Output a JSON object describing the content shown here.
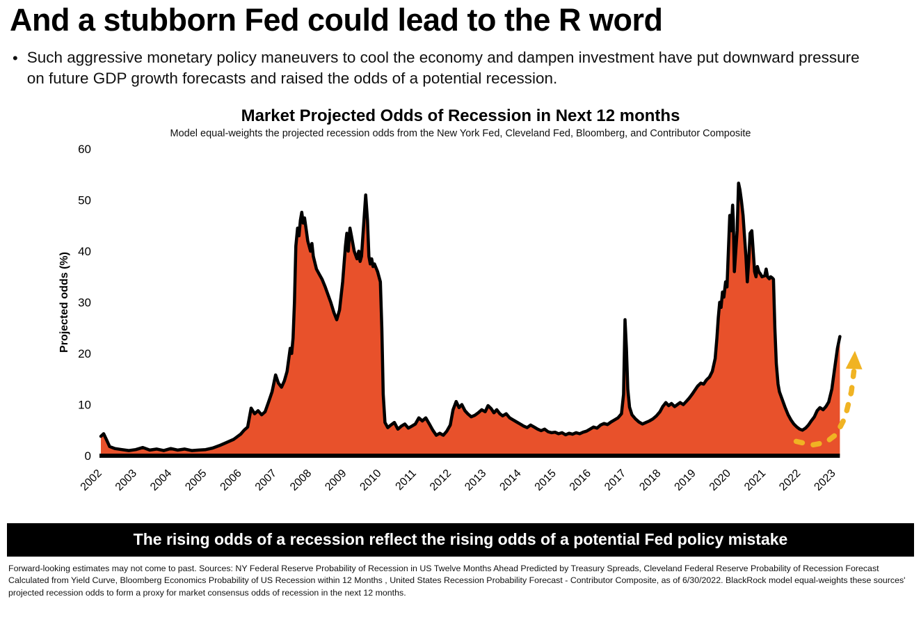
{
  "page": {
    "headline": "And a stubborn Fed could lead to the R word",
    "bullet_glyph": "•",
    "bullet": "Such aggressive monetary policy maneuvers to cool the economy and dampen investment have put downward pressure on future GDP growth forecasts and raised the odds of a potential recession.",
    "banner": "The rising odds of a recession reflect the rising odds of a potential Fed policy mistake",
    "footnote": "Forward-looking estimates may not come to past. Sources: NY Federal Reserve Probability of Recession in US Twelve Months Ahead Predicted by Treasury Spreads, Cleveland Federal Reserve Probability of Recession Forecast Calculated from Yield Curve, Bloomberg Economics Probability of US Recession within 12 Months , United States Recession Probability Forecast - Contributor Composite, as of 6/30/2022. BlackRock model equal-weights these sources' projected recession odds to form a proxy for market consensus odds of recession in the next 12 months."
  },
  "chart_data": {
    "type": "area",
    "title": "Market Projected Odds of Recession in Next 12 months",
    "subtitle": "Model equal-weights the projected recession odds from the New York Fed, Cleveland Fed, Bloomberg, and Contributor Composite",
    "ylabel": "Projected odds (%)",
    "ylim": [
      0,
      60
    ],
    "yticks": [
      0,
      10,
      20,
      30,
      40,
      50,
      60
    ],
    "xlim": [
      2002,
      2023.7
    ],
    "xticks": [
      2002,
      2003,
      2004,
      2005,
      2006,
      2007,
      2008,
      2009,
      2010,
      2011,
      2012,
      2013,
      2014,
      2015,
      2016,
      2017,
      2018,
      2019,
      2020,
      2021,
      2022,
      2023
    ],
    "grid": false,
    "legend": null,
    "fill_color": "#E8512B",
    "line_color": "#000000",
    "points": [
      [
        2002.0,
        3.8
      ],
      [
        2002.08,
        4.3
      ],
      [
        2002.17,
        3.0
      ],
      [
        2002.25,
        1.8
      ],
      [
        2002.4,
        1.4
      ],
      [
        2002.6,
        1.2
      ],
      [
        2002.8,
        1.0
      ],
      [
        2003.0,
        1.2
      ],
      [
        2003.2,
        1.6
      ],
      [
        2003.4,
        1.1
      ],
      [
        2003.6,
        1.3
      ],
      [
        2003.8,
        1.0
      ],
      [
        2004.0,
        1.4
      ],
      [
        2004.2,
        1.1
      ],
      [
        2004.4,
        1.3
      ],
      [
        2004.6,
        1.0
      ],
      [
        2004.8,
        1.1
      ],
      [
        2005.0,
        1.2
      ],
      [
        2005.2,
        1.5
      ],
      [
        2005.4,
        2.0
      ],
      [
        2005.6,
        2.6
      ],
      [
        2005.8,
        3.2
      ],
      [
        2006.0,
        4.2
      ],
      [
        2006.1,
        5.0
      ],
      [
        2006.2,
        5.6
      ],
      [
        2006.3,
        9.3
      ],
      [
        2006.4,
        8.2
      ],
      [
        2006.5,
        8.8
      ],
      [
        2006.6,
        8.0
      ],
      [
        2006.7,
        8.6
      ],
      [
        2006.8,
        10.5
      ],
      [
        2006.9,
        12.5
      ],
      [
        2007.0,
        15.8
      ],
      [
        2007.08,
        14.2
      ],
      [
        2007.17,
        13.4
      ],
      [
        2007.25,
        14.6
      ],
      [
        2007.33,
        16.5
      ],
      [
        2007.42,
        21.0
      ],
      [
        2007.46,
        20.0
      ],
      [
        2007.5,
        23.0
      ],
      [
        2007.54,
        30.0
      ],
      [
        2007.58,
        41.0
      ],
      [
        2007.63,
        44.5
      ],
      [
        2007.67,
        43.0
      ],
      [
        2007.71,
        46.0
      ],
      [
        2007.75,
        47.6
      ],
      [
        2007.79,
        45.5
      ],
      [
        2007.83,
        46.5
      ],
      [
        2007.88,
        44.0
      ],
      [
        2007.92,
        42.0
      ],
      [
        2008.0,
        40.0
      ],
      [
        2008.04,
        41.5
      ],
      [
        2008.08,
        39.0
      ],
      [
        2008.17,
        36.5
      ],
      [
        2008.25,
        35.5
      ],
      [
        2008.33,
        34.5
      ],
      [
        2008.42,
        33.0
      ],
      [
        2008.5,
        31.5
      ],
      [
        2008.58,
        30.0
      ],
      [
        2008.67,
        28.0
      ],
      [
        2008.75,
        26.6
      ],
      [
        2008.83,
        28.5
      ],
      [
        2008.92,
        34.0
      ],
      [
        2009.0,
        41.0
      ],
      [
        2009.04,
        43.5
      ],
      [
        2009.08,
        40.0
      ],
      [
        2009.13,
        44.5
      ],
      [
        2009.17,
        43.0
      ],
      [
        2009.25,
        40.0
      ],
      [
        2009.33,
        38.5
      ],
      [
        2009.38,
        40.0
      ],
      [
        2009.42,
        38.0
      ],
      [
        2009.46,
        39.0
      ],
      [
        2009.5,
        43.0
      ],
      [
        2009.54,
        47.0
      ],
      [
        2009.58,
        51.0
      ],
      [
        2009.63,
        46.0
      ],
      [
        2009.67,
        39.0
      ],
      [
        2009.71,
        37.5
      ],
      [
        2009.75,
        38.5
      ],
      [
        2009.79,
        37.0
      ],
      [
        2009.83,
        37.5
      ],
      [
        2009.92,
        36.0
      ],
      [
        2010.0,
        34.0
      ],
      [
        2010.04,
        25.0
      ],
      [
        2010.08,
        12.0
      ],
      [
        2010.13,
        6.5
      ],
      [
        2010.21,
        5.5
      ],
      [
        2010.3,
        6.0
      ],
      [
        2010.4,
        6.5
      ],
      [
        2010.5,
        5.2
      ],
      [
        2010.6,
        5.8
      ],
      [
        2010.7,
        6.2
      ],
      [
        2010.8,
        5.4
      ],
      [
        2010.9,
        5.8
      ],
      [
        2011.0,
        6.2
      ],
      [
        2011.1,
        7.4
      ],
      [
        2011.2,
        6.8
      ],
      [
        2011.3,
        7.4
      ],
      [
        2011.4,
        6.2
      ],
      [
        2011.5,
        5.0
      ],
      [
        2011.6,
        4.0
      ],
      [
        2011.7,
        4.4
      ],
      [
        2011.8,
        4.0
      ],
      [
        2011.9,
        4.8
      ],
      [
        2012.0,
        6.0
      ],
      [
        2012.08,
        9.0
      ],
      [
        2012.17,
        10.6
      ],
      [
        2012.25,
        9.4
      ],
      [
        2012.33,
        10.0
      ],
      [
        2012.42,
        8.8
      ],
      [
        2012.5,
        8.2
      ],
      [
        2012.6,
        7.6
      ],
      [
        2012.7,
        7.9
      ],
      [
        2012.8,
        8.4
      ],
      [
        2012.9,
        9.0
      ],
      [
        2013.0,
        8.6
      ],
      [
        2013.08,
        9.8
      ],
      [
        2013.17,
        9.2
      ],
      [
        2013.25,
        8.4
      ],
      [
        2013.33,
        9.0
      ],
      [
        2013.42,
        8.2
      ],
      [
        2013.5,
        7.8
      ],
      [
        2013.6,
        8.2
      ],
      [
        2013.7,
        7.4
      ],
      [
        2013.8,
        7.0
      ],
      [
        2013.9,
        6.6
      ],
      [
        2014.0,
        6.2
      ],
      [
        2014.1,
        5.8
      ],
      [
        2014.2,
        5.5
      ],
      [
        2014.3,
        6.0
      ],
      [
        2014.4,
        5.6
      ],
      [
        2014.5,
        5.2
      ],
      [
        2014.6,
        4.9
      ],
      [
        2014.7,
        5.2
      ],
      [
        2014.8,
        4.7
      ],
      [
        2014.9,
        4.5
      ],
      [
        2015.0,
        4.6
      ],
      [
        2015.1,
        4.3
      ],
      [
        2015.2,
        4.5
      ],
      [
        2015.3,
        4.1
      ],
      [
        2015.4,
        4.4
      ],
      [
        2015.5,
        4.2
      ],
      [
        2015.6,
        4.5
      ],
      [
        2015.7,
        4.3
      ],
      [
        2015.8,
        4.6
      ],
      [
        2015.9,
        4.8
      ],
      [
        2016.0,
        5.2
      ],
      [
        2016.1,
        5.6
      ],
      [
        2016.2,
        5.4
      ],
      [
        2016.3,
        6.0
      ],
      [
        2016.4,
        6.3
      ],
      [
        2016.5,
        6.1
      ],
      [
        2016.6,
        6.6
      ],
      [
        2016.7,
        7.0
      ],
      [
        2016.8,
        7.4
      ],
      [
        2016.9,
        8.2
      ],
      [
        2016.96,
        12.0
      ],
      [
        2017.0,
        26.6
      ],
      [
        2017.04,
        21.0
      ],
      [
        2017.08,
        13.0
      ],
      [
        2017.13,
        9.5
      ],
      [
        2017.2,
        8.0
      ],
      [
        2017.3,
        7.2
      ],
      [
        2017.4,
        6.6
      ],
      [
        2017.5,
        6.2
      ],
      [
        2017.6,
        6.5
      ],
      [
        2017.7,
        6.8
      ],
      [
        2017.8,
        7.2
      ],
      [
        2017.9,
        7.8
      ],
      [
        2018.0,
        8.6
      ],
      [
        2018.08,
        9.6
      ],
      [
        2018.17,
        10.4
      ],
      [
        2018.25,
        9.8
      ],
      [
        2018.33,
        10.2
      ],
      [
        2018.42,
        9.6
      ],
      [
        2018.5,
        10.0
      ],
      [
        2018.58,
        10.4
      ],
      [
        2018.67,
        10.0
      ],
      [
        2018.75,
        10.6
      ],
      [
        2018.83,
        11.2
      ],
      [
        2018.92,
        12.0
      ],
      [
        2019.0,
        12.8
      ],
      [
        2019.08,
        13.6
      ],
      [
        2019.17,
        14.2
      ],
      [
        2019.25,
        14.0
      ],
      [
        2019.33,
        14.8
      ],
      [
        2019.42,
        15.4
      ],
      [
        2019.5,
        16.5
      ],
      [
        2019.58,
        19.0
      ],
      [
        2019.63,
        23.0
      ],
      [
        2019.67,
        27.0
      ],
      [
        2019.71,
        30.0
      ],
      [
        2019.75,
        29.0
      ],
      [
        2019.79,
        32.0
      ],
      [
        2019.83,
        31.0
      ],
      [
        2019.88,
        34.0
      ],
      [
        2019.92,
        33.0
      ],
      [
        2020.0,
        47.0
      ],
      [
        2020.04,
        44.0
      ],
      [
        2020.08,
        49.0
      ],
      [
        2020.1,
        46.0
      ],
      [
        2020.13,
        36.0
      ],
      [
        2020.17,
        40.0
      ],
      [
        2020.21,
        44.0
      ],
      [
        2020.25,
        53.3
      ],
      [
        2020.29,
        52.0
      ],
      [
        2020.33,
        50.0
      ],
      [
        2020.38,
        47.0
      ],
      [
        2020.42,
        43.0
      ],
      [
        2020.46,
        39.0
      ],
      [
        2020.5,
        34.0
      ],
      [
        2020.54,
        38.0
      ],
      [
        2020.58,
        43.5
      ],
      [
        2020.63,
        44.0
      ],
      [
        2020.67,
        40.0
      ],
      [
        2020.71,
        36.0
      ],
      [
        2020.75,
        35.0
      ],
      [
        2020.79,
        37.0
      ],
      [
        2020.83,
        36.0
      ],
      [
        2020.88,
        35.5
      ],
      [
        2020.92,
        35.0
      ],
      [
        2021.0,
        35.2
      ],
      [
        2021.04,
        36.5
      ],
      [
        2021.08,
        35.0
      ],
      [
        2021.13,
        34.6
      ],
      [
        2021.17,
        35.0
      ],
      [
        2021.21,
        34.8
      ],
      [
        2021.25,
        34.5
      ],
      [
        2021.29,
        25.0
      ],
      [
        2021.33,
        18.0
      ],
      [
        2021.38,
        14.0
      ],
      [
        2021.42,
        12.5
      ],
      [
        2021.5,
        11.0
      ],
      [
        2021.58,
        9.5
      ],
      [
        2021.67,
        8.0
      ],
      [
        2021.75,
        7.0
      ],
      [
        2021.83,
        6.2
      ],
      [
        2021.92,
        5.6
      ],
      [
        2022.0,
        5.2
      ],
      [
        2022.08,
        5.0
      ],
      [
        2022.17,
        5.4
      ],
      [
        2022.25,
        6.0
      ],
      [
        2022.33,
        6.8
      ],
      [
        2022.42,
        7.6
      ],
      [
        2022.5,
        8.8
      ],
      [
        2022.58,
        9.4
      ],
      [
        2022.67,
        9.0
      ],
      [
        2022.75,
        9.6
      ],
      [
        2022.83,
        10.5
      ],
      [
        2022.92,
        13.0
      ],
      [
        2023.0,
        17.0
      ],
      [
        2023.08,
        21.0
      ],
      [
        2023.15,
        23.3
      ]
    ],
    "annotation": {
      "type": "dashed-arrow",
      "label": "projected-rise-arrow",
      "color": "#F0B323",
      "points": [
        [
          2021.9,
          2.8
        ],
        [
          2022.35,
          2.1
        ],
        [
          2022.75,
          2.6
        ],
        [
          2023.05,
          4.2
        ],
        [
          2023.3,
          7.5
        ],
        [
          2023.48,
          12.5
        ],
        [
          2023.55,
          16.5
        ]
      ],
      "tip": [
        2023.58,
        20.5
      ]
    }
  }
}
